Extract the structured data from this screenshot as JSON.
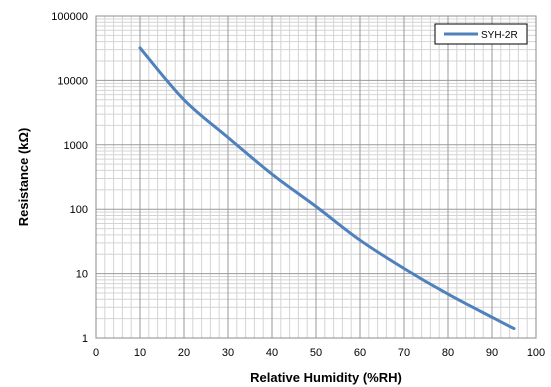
{
  "chart_data": {
    "type": "line",
    "xlabel": "Relative Humidity (%RH)",
    "ylabel": "Resistance (kΩ)",
    "xlim": [
      0,
      100
    ],
    "ylim": [
      1,
      100000
    ],
    "yscale": "log",
    "grid": true,
    "legend_position": "top-right",
    "x_ticks": [
      "0",
      "10",
      "20",
      "30",
      "40",
      "50",
      "60",
      "70",
      "80",
      "90",
      "100"
    ],
    "y_ticks": [
      "1",
      "10",
      "100",
      "1000",
      "10000",
      "100000"
    ],
    "series": [
      {
        "name": "SYH-2R",
        "color": "#4f81bd",
        "x": [
          10,
          20,
          30,
          40,
          50,
          60,
          70,
          80,
          90,
          95
        ],
        "y": [
          32000,
          5000,
          1300,
          350,
          110,
          33,
          12,
          4.8,
          2.1,
          1.4
        ]
      }
    ]
  }
}
